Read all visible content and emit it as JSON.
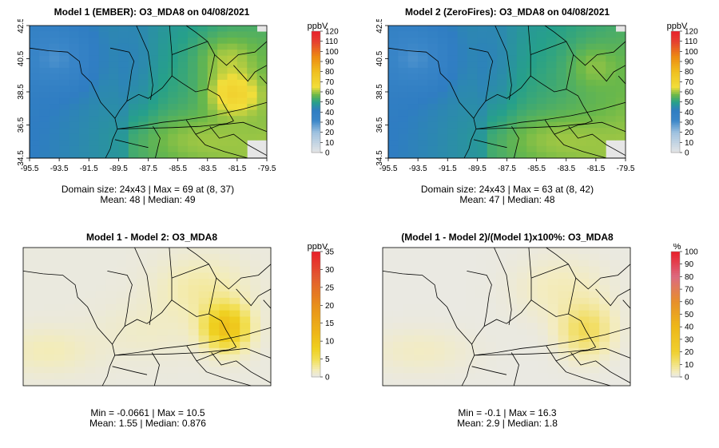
{
  "panels": [
    {
      "title": "Model 1 (EMBER): O3_MDA8 on 04/08/2021",
      "stats_line1": "Domain size: 24x43 | Max = 69 at (8, 37)",
      "stats_line2": "Mean: 48 |  Median: 49",
      "legend_unit": "ppbV",
      "legend_ticks": [
        "0",
        "10",
        "20",
        "30",
        "40",
        "50",
        "60",
        "70",
        "80",
        "90",
        "100",
        "110",
        "120"
      ],
      "legend_max": 120,
      "x_ticks": [
        "-95.5",
        "-93.5",
        "-91.5",
        "-89.5",
        "-87.5",
        "-85.5",
        "-83.5",
        "-81.5",
        "-79.5"
      ],
      "y_ticks": [
        "34.5",
        "36.5",
        "38.5",
        "40.5",
        "42.5"
      ],
      "show_axes": true,
      "field": "ember"
    },
    {
      "title": "Model 2 (ZeroFires): O3_MDA8 on 04/08/2021",
      "stats_line1": "Domain size: 24x43 | Max = 63 at (8, 42)",
      "stats_line2": "Mean: 47 |  Median: 48",
      "legend_unit": "ppbV",
      "legend_ticks": [
        "0",
        "10",
        "20",
        "30",
        "40",
        "50",
        "60",
        "70",
        "80",
        "90",
        "100",
        "110",
        "120"
      ],
      "legend_max": 120,
      "x_ticks": [
        "-95.5",
        "-93.5",
        "-91.5",
        "-89.5",
        "-87.5",
        "-85.5",
        "-83.5",
        "-81.5",
        "-79.5"
      ],
      "y_ticks": [
        "34.5",
        "36.5",
        "38.5",
        "40.5",
        "42.5"
      ],
      "show_axes": true,
      "field": "zerofires"
    },
    {
      "title": "Model 1 - Model 2: O3_MDA8",
      "stats_line1": "Min = -0.0661 | Max = 10.5",
      "stats_line2": "Mean: 1.55 |  Median: 0.876",
      "legend_unit": "ppbV",
      "legend_ticks": [
        "0",
        "5",
        "10",
        "15",
        "20",
        "25",
        "30",
        "35"
      ],
      "legend_max": 35,
      "x_ticks": [],
      "y_ticks": [],
      "show_axes": false,
      "field": "diff"
    },
    {
      "title": "(Model 1 - Model 2)/(Model 1)x100%: O3_MDA8",
      "stats_line1": "Min = -0.1 | Max = 16.3",
      "stats_line2": "Mean: 2.9 |  Median: 1.8",
      "legend_unit": "%",
      "legend_ticks": [
        "0",
        "10",
        "20",
        "30",
        "40",
        "50",
        "60",
        "70",
        "80",
        "90",
        "100"
      ],
      "legend_max": 100,
      "x_ticks": [],
      "y_ticks": [],
      "show_axes": false,
      "field": "pct"
    }
  ],
  "colors": {
    "border": "#000000",
    "low_gray": "#e6e6e6",
    "blue": "#2f7dc2",
    "teal": "#26a08a",
    "green": "#66b84a",
    "yellow": "#f2de3a",
    "orange": "#ed8a12",
    "red": "#e8202a"
  }
}
